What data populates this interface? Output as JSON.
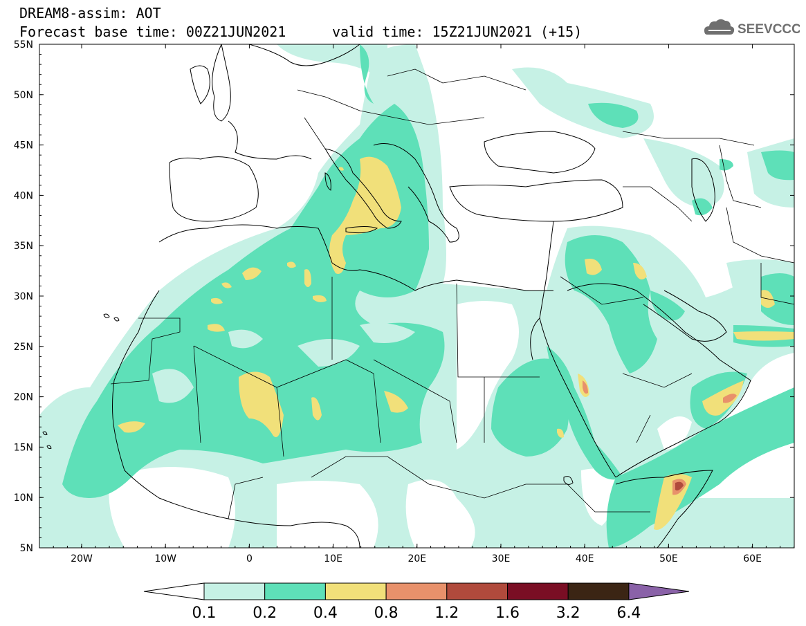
{
  "header": {
    "title": "DREAM8-assim: AOT",
    "base_time": "Forecast base time: 00Z21JUN2021",
    "valid_time": "valid time: 15Z21JUN2021 (+15)",
    "logo_text": "SEEVCCC"
  },
  "axes": {
    "lat_labels": [
      "55N",
      "50N",
      "45N",
      "40N",
      "35N",
      "30N",
      "25N",
      "20N",
      "15N",
      "10N",
      "5N"
    ],
    "lon_labels": [
      "20W",
      "10W",
      "0",
      "10E",
      "20E",
      "30E",
      "40E",
      "50E",
      "60E"
    ]
  },
  "colorbar": {
    "labels": [
      "0.1",
      "0.2",
      "0.4",
      "0.8",
      "1.2",
      "1.6",
      "3.2",
      "6.4"
    ],
    "colors": [
      "#c6f1e5",
      "#5ee0b8",
      "#f1e07a",
      "#e8916b",
      "#b04a3c",
      "#7a0e24",
      "#3b2514",
      "#8a62a8"
    ]
  },
  "palette": {
    "low": "#c6f1e5",
    "mid": "#5ee0b8",
    "high": "#f1e07a",
    "higher": "#e8916b",
    "peak": "#b04a3c"
  }
}
